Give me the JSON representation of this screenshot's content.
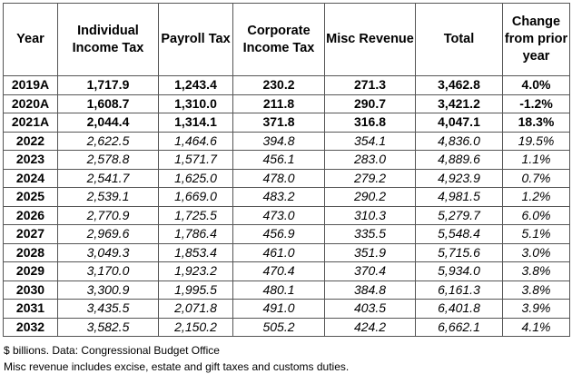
{
  "table": {
    "headers": [
      "Year",
      "Individual Income Tax",
      "Payroll Tax",
      "Corporate Income Tax",
      "Misc Revenue",
      "Total",
      "Change from prior year"
    ],
    "rows": [
      {
        "type": "actual",
        "cells": [
          "2019A",
          "1,717.9",
          "1,243.4",
          "230.2",
          "271.3",
          "3,462.8",
          "4.0%"
        ]
      },
      {
        "type": "actual",
        "cells": [
          "2020A",
          "1,608.7",
          "1,310.0",
          "211.8",
          "290.7",
          "3,421.2",
          "-1.2%"
        ]
      },
      {
        "type": "actual",
        "cells": [
          "2021A",
          "2,044.4",
          "1,314.1",
          "371.8",
          "316.8",
          "4,047.1",
          "18.3%"
        ]
      },
      {
        "type": "proj",
        "cells": [
          "2022",
          "2,622.5",
          "1,464.6",
          "394.8",
          "354.1",
          "4,836.0",
          "19.5%"
        ]
      },
      {
        "type": "proj",
        "cells": [
          "2023",
          "2,578.8",
          "1,571.7",
          "456.1",
          "283.0",
          "4,889.6",
          "1.1%"
        ]
      },
      {
        "type": "proj",
        "cells": [
          "2024",
          "2,541.7",
          "1,625.0",
          "478.0",
          "279.2",
          "4,923.9",
          "0.7%"
        ]
      },
      {
        "type": "proj",
        "cells": [
          "2025",
          "2,539.1",
          "1,669.0",
          "483.2",
          "290.2",
          "4,981.5",
          "1.2%"
        ]
      },
      {
        "type": "proj",
        "cells": [
          "2026",
          "2,770.9",
          "1,725.5",
          "473.0",
          "310.3",
          "5,279.7",
          "6.0%"
        ]
      },
      {
        "type": "proj",
        "cells": [
          "2027",
          "2,969.6",
          "1,786.4",
          "456.9",
          "335.5",
          "5,548.4",
          "5.1%"
        ]
      },
      {
        "type": "proj",
        "cells": [
          "2028",
          "3,049.3",
          "1,853.4",
          "461.0",
          "351.9",
          "5,715.6",
          "3.0%"
        ]
      },
      {
        "type": "proj",
        "cells": [
          "2029",
          "3,170.0",
          "1,923.2",
          "470.4",
          "370.4",
          "5,934.0",
          "3.8%"
        ]
      },
      {
        "type": "proj",
        "cells": [
          "2030",
          "3,300.9",
          "1,995.5",
          "480.1",
          "384.8",
          "6,161.3",
          "3.8%"
        ]
      },
      {
        "type": "proj",
        "cells": [
          "2031",
          "3,435.5",
          "2,071.8",
          "491.0",
          "403.5",
          "6,401.8",
          "3.9%"
        ]
      },
      {
        "type": "proj",
        "cells": [
          "2032",
          "3,582.5",
          "2,150.2",
          "505.2",
          "424.2",
          "6,662.1",
          "4.1%"
        ]
      }
    ]
  },
  "notes": {
    "source": "$ billions. Data: Congressional Budget Office",
    "misc": "Misc revenue includes excise, estate and gift taxes and customs duties."
  }
}
